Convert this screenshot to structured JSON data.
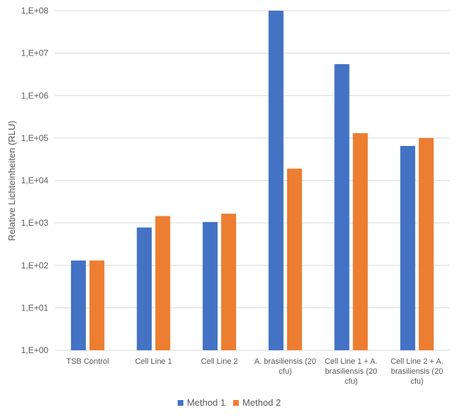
{
  "chart_data": {
    "type": "bar",
    "ylabel": "Relative Lichteinheiten (RLU)",
    "yscale": "log",
    "ylim": [
      1,
      100000000
    ],
    "yticks": [
      1,
      10,
      100,
      1000,
      10000,
      100000,
      1000000,
      10000000,
      100000000
    ],
    "ytick_labels": [
      "1,E+00",
      "1,E+01",
      "1,E+02",
      "1,E+03",
      "1,E+04",
      "1,E+05",
      "1,E+06",
      "1,E+07",
      "1,E+08"
    ],
    "grid": true,
    "legend": "bottom",
    "categories": [
      [
        "TSB Control"
      ],
      [
        "Cell Line 1"
      ],
      [
        "Cell Line 2"
      ],
      [
        "A. brasiliensis (20",
        "cfu)"
      ],
      [
        "Cell Line 1 + A.",
        "brasiliensis (20",
        "cfu)"
      ],
      [
        "Cell Line 2 + A.",
        "brasiliensis (20",
        "cfu)"
      ]
    ],
    "series": [
      {
        "name": "Method 1",
        "color": "#4472c4",
        "values": [
          130,
          780,
          1050,
          100000000,
          5500000,
          65000
        ]
      },
      {
        "name": "Method 2",
        "color": "#ed7d31",
        "values": [
          130,
          1450,
          1650,
          19000,
          130000,
          100000
        ]
      }
    ]
  }
}
